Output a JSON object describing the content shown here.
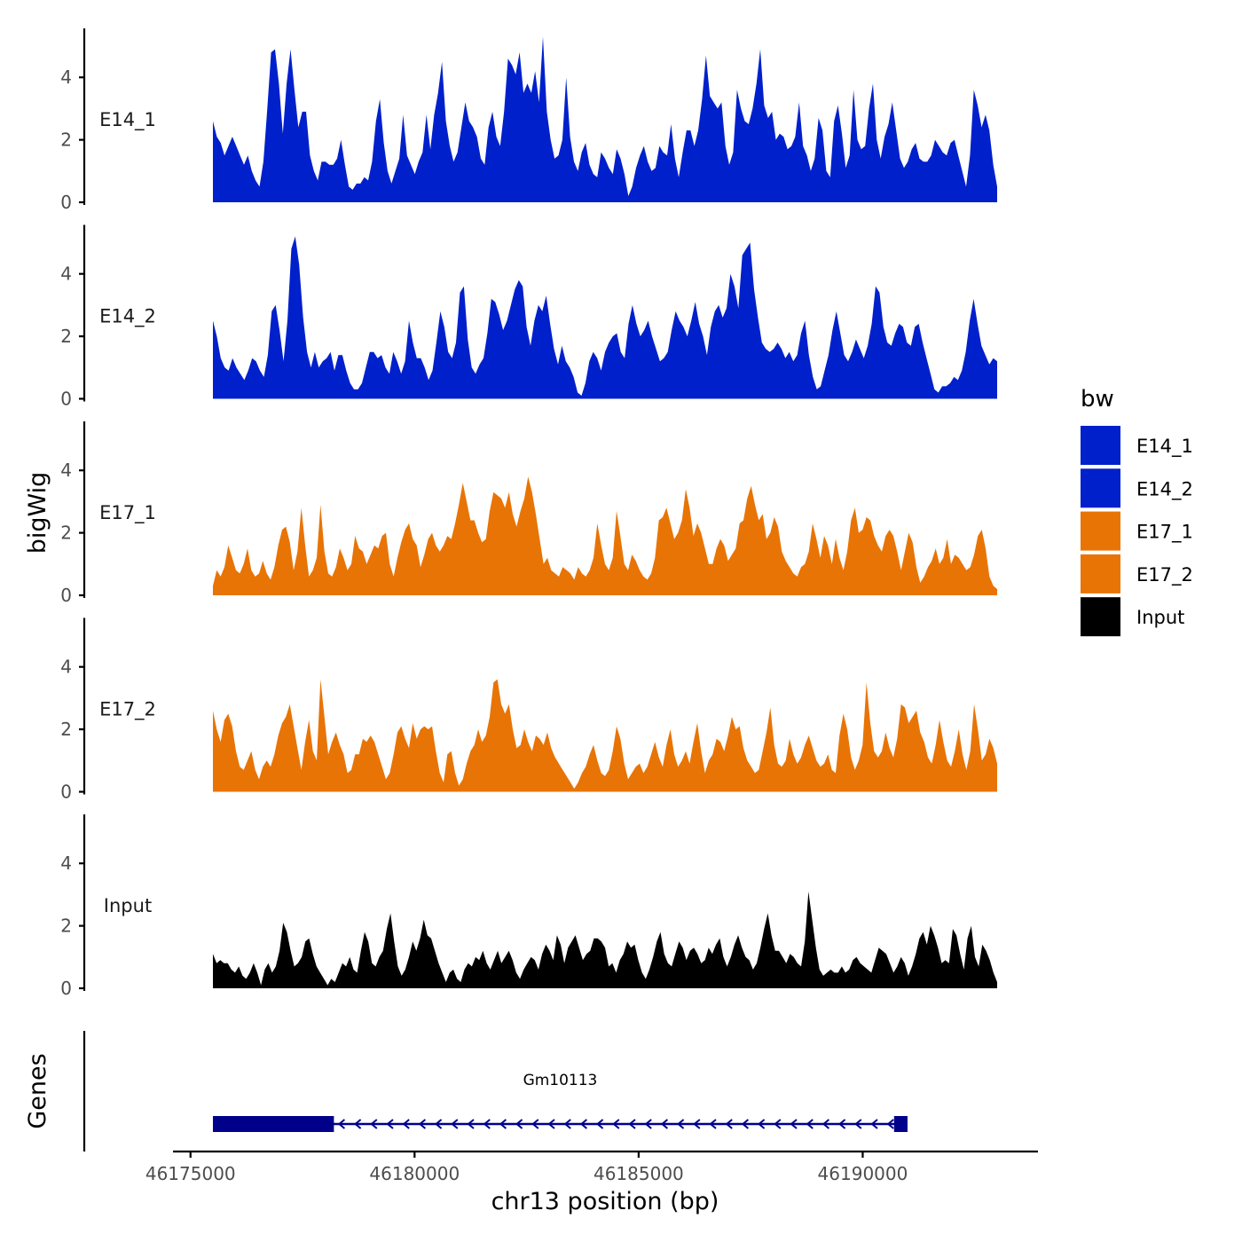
{
  "chart_data": {
    "type": "area",
    "title": "",
    "y_axis_title": "bigWig",
    "genes_axis_title": "Genes",
    "x_axis_title": "chr13 position (bp)",
    "x_range": [
      46175000,
      46193800
    ],
    "x_data_range": [
      46175500,
      46193000
    ],
    "x_ticks": [
      46175000,
      46180000,
      46185000,
      46190000
    ],
    "x_tick_labels": [
      "46175000",
      "46180000",
      "46185000",
      "46190000"
    ],
    "y_range": [
      0,
      5.5
    ],
    "y_ticks": [
      0,
      2,
      4
    ],
    "y_tick_labels": [
      "0",
      "2",
      "4"
    ],
    "legend": {
      "title": "bw",
      "position": "right",
      "entries": [
        {
          "label": "E14_1",
          "color": "#0020CC"
        },
        {
          "label": "E14_2",
          "color": "#0020CC"
        },
        {
          "label": "E17_1",
          "color": "#E87406"
        },
        {
          "label": "E17_2",
          "color": "#E87406"
        },
        {
          "label": "Input",
          "color": "#000000"
        }
      ]
    },
    "tracks": [
      {
        "name": "E14_1",
        "color": "#0020CC",
        "values": [
          2.6,
          2.1,
          1.9,
          1.5,
          1.8,
          2.1,
          1.8,
          1.5,
          1.2,
          1.5,
          1.0,
          0.7,
          0.5,
          1.3,
          3.0,
          4.8,
          4.9,
          3.8,
          2.2,
          3.8,
          4.9,
          3.6,
          2.4,
          2.9,
          2.9,
          1.5,
          1.0,
          0.7,
          1.3,
          1.3,
          1.2,
          1.2,
          1.4,
          2.0,
          1.2,
          0.5,
          0.4,
          0.6,
          0.6,
          0.8,
          0.7,
          1.3,
          2.6,
          3.3,
          1.9,
          1.0,
          0.6,
          1.0,
          1.4,
          2.8,
          1.5,
          1.2,
          0.9,
          1.3,
          1.6,
          2.8,
          1.7,
          2.8,
          3.5,
          4.5,
          2.6,
          1.8,
          1.3,
          1.6,
          2.4,
          3.2,
          2.6,
          2.4,
          2.1,
          1.4,
          1.2,
          2.4,
          2.9,
          2.1,
          1.8,
          2.9,
          4.6,
          4.4,
          4.1,
          4.8,
          3.5,
          3.8,
          3.5,
          4.2,
          3.2,
          5.3,
          2.9,
          2.0,
          1.4,
          1.5,
          2.0,
          4.0,
          2.1,
          1.3,
          1.0,
          1.6,
          1.9,
          1.2,
          0.9,
          0.8,
          1.6,
          1.4,
          1.1,
          0.9,
          1.7,
          1.4,
          0.9,
          0.2,
          0.5,
          1.1,
          1.5,
          1.8,
          1.3,
          1.0,
          1.1,
          1.8,
          1.6,
          1.5,
          2.5,
          1.4,
          0.8,
          1.6,
          2.3,
          2.3,
          1.8,
          2.3,
          3.3,
          4.7,
          3.4,
          3.2,
          3.0,
          3.2,
          1.8,
          1.2,
          1.6,
          3.6,
          3.0,
          2.6,
          2.5,
          3.0,
          3.8,
          4.9,
          3.1,
          2.7,
          2.9,
          2.0,
          2.2,
          2.1,
          1.7,
          1.8,
          2.1,
          3.2,
          1.8,
          1.5,
          1.0,
          1.4,
          2.7,
          2.3,
          1.0,
          0.8,
          2.6,
          3.1,
          2.2,
          1.1,
          1.5,
          3.6,
          2.0,
          1.7,
          1.8,
          3.0,
          3.8,
          2.0,
          1.4,
          2.1,
          2.5,
          3.2,
          2.3,
          1.4,
          1.1,
          1.3,
          1.7,
          1.9,
          1.4,
          1.3,
          1.3,
          1.5,
          2.0,
          1.8,
          1.6,
          1.5,
          1.9,
          2.0,
          1.5,
          1.0,
          0.5,
          1.5,
          3.6,
          3.1,
          2.4,
          2.8,
          2.3,
          1.2,
          0.5
        ]
      },
      {
        "name": "E14_2",
        "color": "#0020CC",
        "values": [
          2.5,
          2.0,
          1.3,
          1.0,
          0.9,
          1.3,
          1.0,
          0.8,
          0.6,
          0.9,
          1.3,
          1.2,
          0.9,
          0.7,
          1.4,
          2.8,
          3.0,
          2.2,
          1.2,
          2.5,
          4.8,
          5.2,
          4.3,
          2.6,
          1.5,
          1.0,
          1.5,
          1.0,
          1.2,
          1.3,
          1.5,
          0.9,
          1.4,
          1.4,
          0.9,
          0.5,
          0.3,
          0.3,
          0.5,
          1.0,
          1.5,
          1.5,
          1.3,
          1.4,
          1.0,
          0.8,
          1.5,
          1.2,
          0.8,
          1.2,
          2.5,
          1.8,
          1.3,
          1.3,
          1.0,
          0.6,
          0.9,
          1.8,
          2.8,
          2.3,
          1.5,
          1.3,
          1.8,
          3.4,
          3.6,
          1.9,
          1.0,
          0.8,
          1.1,
          1.3,
          2.1,
          3.2,
          3.1,
          2.7,
          2.2,
          2.5,
          3.0,
          3.5,
          3.8,
          3.6,
          2.3,
          1.7,
          2.5,
          3.0,
          2.8,
          3.3,
          2.4,
          1.6,
          1.1,
          1.7,
          1.2,
          1.0,
          0.7,
          0.2,
          0.1,
          0.5,
          1.2,
          1.5,
          1.3,
          0.9,
          1.5,
          1.8,
          2.0,
          2.1,
          1.5,
          1.3,
          2.4,
          3.0,
          2.4,
          2.0,
          2.2,
          2.5,
          2.0,
          1.6,
          1.2,
          1.3,
          1.5,
          2.2,
          2.8,
          2.5,
          2.3,
          2.0,
          2.5,
          3.1,
          2.4,
          2.0,
          1.4,
          2.3,
          2.8,
          3.0,
          2.6,
          2.9,
          4.0,
          3.6,
          2.9,
          4.6,
          4.8,
          5.0,
          3.5,
          2.6,
          1.8,
          1.6,
          1.5,
          1.6,
          1.8,
          1.6,
          1.3,
          1.5,
          1.2,
          1.4,
          2.1,
          2.5,
          1.4,
          0.7,
          0.3,
          0.4,
          0.9,
          1.4,
          2.2,
          2.8,
          2.1,
          1.4,
          1.2,
          1.5,
          1.9,
          1.6,
          1.3,
          1.7,
          2.4,
          3.6,
          3.4,
          2.3,
          1.8,
          1.7,
          2.1,
          2.4,
          2.3,
          1.8,
          1.7,
          2.3,
          2.4,
          1.8,
          1.3,
          0.8,
          0.3,
          0.2,
          0.4,
          0.4,
          0.5,
          0.7,
          0.6,
          0.9,
          1.5,
          2.5,
          3.2,
          2.4,
          1.7,
          1.4,
          1.1,
          1.3,
          1.2
        ]
      },
      {
        "name": "E17_1",
        "color": "#E87406",
        "values": [
          0.3,
          0.8,
          0.6,
          0.9,
          1.6,
          1.2,
          0.8,
          0.7,
          1.0,
          1.5,
          0.8,
          0.6,
          0.7,
          1.1,
          0.7,
          0.5,
          0.9,
          1.6,
          2.1,
          2.2,
          1.7,
          0.8,
          1.4,
          2.8,
          1.6,
          0.6,
          0.8,
          1.2,
          2.9,
          1.4,
          0.7,
          0.6,
          0.9,
          1.5,
          1.2,
          0.8,
          1.0,
          1.9,
          1.5,
          1.4,
          1.0,
          1.3,
          1.6,
          1.5,
          1.9,
          2.0,
          1.0,
          0.6,
          1.2,
          1.7,
          2.1,
          2.3,
          1.8,
          1.6,
          0.9,
          1.3,
          1.8,
          2.0,
          1.6,
          1.4,
          1.6,
          1.9,
          1.8,
          2.3,
          2.9,
          3.6,
          3.0,
          2.4,
          2.4,
          2.0,
          1.7,
          1.8,
          2.7,
          3.3,
          3.2,
          3.1,
          2.8,
          3.3,
          2.6,
          2.2,
          2.7,
          3.1,
          3.8,
          3.3,
          2.6,
          1.8,
          1.0,
          1.2,
          0.8,
          0.7,
          0.6,
          0.9,
          0.8,
          0.7,
          0.5,
          0.9,
          0.7,
          0.6,
          0.8,
          1.2,
          2.3,
          1.6,
          1.0,
          0.8,
          1.2,
          2.7,
          1.9,
          1.0,
          0.8,
          1.3,
          1.1,
          0.8,
          0.6,
          0.5,
          0.7,
          1.2,
          2.4,
          2.5,
          2.8,
          2.3,
          1.8,
          2.0,
          2.4,
          3.4,
          2.8,
          1.9,
          2.3,
          2.0,
          1.5,
          1.0,
          1.0,
          1.5,
          1.8,
          1.6,
          1.1,
          1.3,
          1.5,
          2.3,
          2.4,
          3.1,
          3.5,
          2.9,
          2.4,
          2.6,
          1.8,
          2.0,
          2.5,
          2.2,
          1.4,
          1.1,
          0.9,
          0.7,
          0.6,
          0.9,
          1.0,
          1.4,
          2.3,
          1.8,
          1.2,
          1.9,
          1.6,
          1.0,
          1.8,
          1.2,
          0.8,
          1.4,
          2.4,
          2.8,
          2.0,
          2.1,
          2.5,
          2.4,
          1.9,
          1.6,
          1.4,
          1.9,
          2.1,
          1.9,
          1.4,
          0.8,
          1.4,
          2.0,
          1.7,
          0.9,
          0.4,
          0.6,
          0.9,
          1.1,
          1.5,
          1.0,
          1.2,
          1.8,
          1.0,
          1.3,
          1.2,
          1.0,
          0.8,
          0.9,
          1.3,
          1.9,
          2.1,
          1.5,
          0.6,
          0.3,
          0.2
        ]
      },
      {
        "name": "E17_2",
        "color": "#E87406",
        "values": [
          2.6,
          2.0,
          1.6,
          2.3,
          2.5,
          2.1,
          1.3,
          0.8,
          0.7,
          1.0,
          1.3,
          0.7,
          0.4,
          0.8,
          1.0,
          0.8,
          1.2,
          1.8,
          2.2,
          2.4,
          2.8,
          2.1,
          1.4,
          0.7,
          1.6,
          2.3,
          1.3,
          1.0,
          3.6,
          2.4,
          1.2,
          1.6,
          1.9,
          1.5,
          1.2,
          0.6,
          0.7,
          1.2,
          1.2,
          1.7,
          1.6,
          1.8,
          1.6,
          1.2,
          0.8,
          0.4,
          0.6,
          1.2,
          1.9,
          2.1,
          1.7,
          1.4,
          2.2,
          1.7,
          2.0,
          2.1,
          2.0,
          2.1,
          1.3,
          0.6,
          0.3,
          1.2,
          1.3,
          0.6,
          0.2,
          0.4,
          0.9,
          1.3,
          1.5,
          2.0,
          1.6,
          1.8,
          2.4,
          3.5,
          3.6,
          2.8,
          2.5,
          2.8,
          2.0,
          1.4,
          1.5,
          2.0,
          1.6,
          1.3,
          1.8,
          1.7,
          1.5,
          1.9,
          1.4,
          1.1,
          0.9,
          0.7,
          0.5,
          0.3,
          0.1,
          0.3,
          0.6,
          0.8,
          1.2,
          1.5,
          1.0,
          0.6,
          0.5,
          0.7,
          1.3,
          2.1,
          1.7,
          0.9,
          0.4,
          0.6,
          0.8,
          0.9,
          0.6,
          0.8,
          1.2,
          1.6,
          1.1,
          0.8,
          1.5,
          2.0,
          1.2,
          0.8,
          1.0,
          1.3,
          0.9,
          1.6,
          2.2,
          1.3,
          0.6,
          1.0,
          1.2,
          1.7,
          1.6,
          1.3,
          1.8,
          2.4,
          2.0,
          2.1,
          1.4,
          1.0,
          0.8,
          0.6,
          0.7,
          1.3,
          1.9,
          2.7,
          1.5,
          0.9,
          0.8,
          1.0,
          1.7,
          1.2,
          0.9,
          1.1,
          1.5,
          1.8,
          1.4,
          1.0,
          0.8,
          0.9,
          1.2,
          0.7,
          0.6,
          1.8,
          2.5,
          2.0,
          1.1,
          0.7,
          1.0,
          1.5,
          3.5,
          2.2,
          1.3,
          1.1,
          1.3,
          1.9,
          1.4,
          1.1,
          1.7,
          2.8,
          2.7,
          2.2,
          2.4,
          2.6,
          1.9,
          1.6,
          1.1,
          0.9,
          1.5,
          2.3,
          1.6,
          1.0,
          0.8,
          1.3,
          2.0,
          1.2,
          0.7,
          1.3,
          2.8,
          2.0,
          1.0,
          1.2,
          1.7,
          1.4,
          0.9
        ]
      },
      {
        "name": "Input",
        "color": "#000000",
        "values": [
          1.1,
          0.8,
          0.9,
          0.8,
          0.8,
          0.6,
          0.5,
          0.7,
          0.4,
          0.3,
          0.5,
          0.8,
          0.5,
          0.1,
          0.6,
          0.8,
          0.5,
          0.7,
          1.2,
          2.1,
          1.8,
          1.2,
          0.7,
          0.8,
          1.0,
          1.5,
          1.6,
          1.1,
          0.7,
          0.5,
          0.3,
          0.1,
          0.3,
          0.2,
          0.5,
          0.8,
          0.7,
          1.0,
          0.6,
          0.5,
          1.2,
          1.8,
          1.5,
          0.8,
          0.7,
          1.0,
          1.2,
          1.9,
          2.4,
          1.5,
          0.7,
          0.4,
          0.6,
          1.0,
          1.5,
          1.2,
          1.6,
          2.2,
          1.7,
          1.6,
          1.2,
          0.8,
          0.5,
          0.2,
          0.5,
          0.6,
          0.3,
          0.2,
          0.6,
          0.8,
          0.7,
          1.0,
          0.9,
          1.2,
          0.8,
          0.6,
          0.9,
          1.2,
          0.8,
          1.0,
          1.2,
          0.9,
          0.5,
          0.3,
          0.6,
          0.8,
          1.0,
          0.9,
          0.6,
          1.1,
          1.4,
          1.2,
          0.9,
          1.7,
          1.4,
          0.8,
          1.3,
          1.5,
          1.7,
          1.3,
          0.9,
          1.1,
          1.2,
          1.6,
          1.6,
          1.5,
          1.3,
          0.7,
          0.8,
          0.5,
          0.9,
          1.1,
          1.5,
          1.3,
          1.4,
          0.9,
          0.5,
          0.3,
          0.6,
          1.0,
          1.5,
          1.8,
          1.1,
          0.8,
          0.7,
          1.1,
          1.5,
          1.3,
          0.9,
          1.2,
          1.3,
          1.1,
          0.8,
          0.9,
          1.3,
          1.1,
          1.4,
          1.6,
          1.0,
          0.7,
          1.0,
          1.4,
          1.7,
          1.3,
          1.0,
          0.9,
          0.6,
          0.8,
          1.3,
          1.9,
          2.4,
          1.7,
          1.2,
          1.2,
          1.0,
          0.8,
          1.1,
          1.0,
          0.8,
          0.7,
          1.5,
          3.1,
          2.2,
          1.3,
          0.6,
          0.4,
          0.5,
          0.6,
          0.5,
          0.5,
          0.7,
          0.5,
          0.6,
          0.9,
          1.0,
          0.8,
          0.7,
          0.6,
          0.5,
          0.9,
          1.3,
          1.2,
          1.1,
          0.8,
          0.5,
          0.7,
          1.0,
          0.8,
          0.4,
          0.7,
          1.1,
          1.6,
          1.8,
          1.4,
          2.0,
          1.7,
          1.3,
          0.8,
          0.9,
          0.8,
          1.9,
          1.7,
          1.1,
          0.6,
          1.6,
          2.0,
          1.0,
          0.7,
          1.4,
          1.2,
          0.9,
          0.5,
          0.2
        ]
      }
    ],
    "genes": [
      {
        "name": "Gm10113",
        "strand": "-",
        "start": 46175500,
        "end": 46191000,
        "color": "#00008B",
        "exons": [
          [
            46175500,
            46178200
          ],
          [
            46190700,
            46191000
          ]
        ]
      }
    ]
  }
}
